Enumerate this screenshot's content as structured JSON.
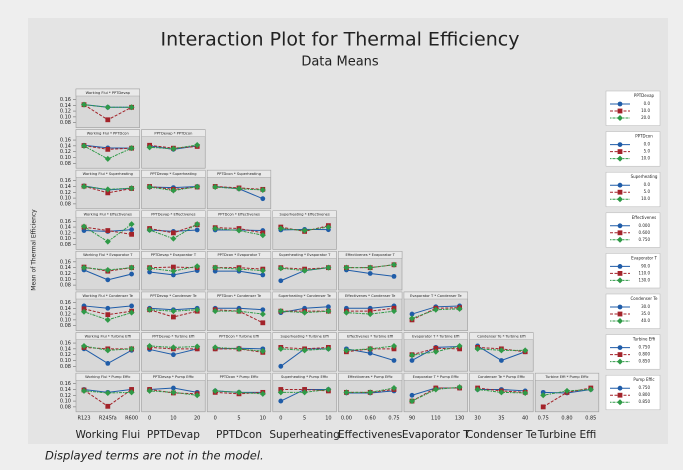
{
  "chart_data": {
    "type": "interaction",
    "title": "Interaction Plot for Thermal Efficiency",
    "subtitle": "Data Means",
    "ylabel": "Mean of Thermal Efficiency",
    "footnote": "Displayed terms are not in the model.",
    "ylim": [
      0.07,
      0.165
    ],
    "yticks": [
      0.08,
      {
        "value": 0.1,
        "label": "0.10"
      },
      0.12,
      0.14,
      0.16
    ],
    "colors": [
      "#1f5ca8",
      "#a3232a",
      "#2f9a47"
    ],
    "markers": [
      "circle",
      "square",
      "diamond"
    ],
    "x_factors": [
      {
        "label": "Working Flui",
        "levels": [
          "R123",
          "R245fa",
          "R600"
        ]
      },
      {
        "label": "PPTDevap",
        "levels": [
          "0",
          "10",
          "20"
        ]
      },
      {
        "label": "PPTDcon",
        "levels": [
          "0",
          "5",
          "10"
        ]
      },
      {
        "label": "Superheating",
        "levels": [
          "0",
          "5",
          "10"
        ]
      },
      {
        "label": "Effectivenes",
        "levels": [
          "0.00",
          "0.60",
          "0.75"
        ]
      },
      {
        "label": "Evaporator T",
        "levels": [
          "90",
          "110",
          "130"
        ]
      },
      {
        "label": "Condenser Te",
        "levels": [
          "30",
          "35",
          "40"
        ]
      },
      {
        "label": "Turbine Effi",
        "levels": [
          "0.75",
          "0.80",
          "0.85"
        ]
      }
    ],
    "rows": [
      {
        "legend": {
          "title": "PPTDevap",
          "levels": [
            "0.0",
            "10.0",
            "20.0"
          ]
        },
        "panels": [
          {
            "title": "Working Flui * PPTDevap",
            "series": [
              [
                0.142,
                0.133,
                0.133
              ],
              [
                0.142,
                0.09,
                0.133
              ],
              [
                0.142,
                0.133,
                0.133
              ]
            ]
          }
        ]
      },
      {
        "legend": {
          "title": "PPTDcon",
          "levels": [
            "0.0",
            "5.0",
            "10.0"
          ]
        },
        "panels": [
          {
            "title": "Working Flui * PPTDcon",
            "series": [
              [
                0.142,
                0.133,
                0.132
              ],
              [
                0.141,
                0.128,
                0.132
              ],
              [
                0.14,
                0.095,
                0.132
              ]
            ]
          },
          {
            "title": "PPTDevap * PPTDcon",
            "series": [
              [
                0.14,
                0.128,
                0.14
              ],
              [
                0.142,
                0.132,
                0.138
              ],
              [
                0.135,
                0.13,
                0.143
              ]
            ]
          }
        ]
      },
      {
        "legend": {
          "title": "Superheating",
          "levels": [
            "0.0",
            "5.0",
            "10.0"
          ]
        },
        "panels": [
          {
            "title": "Working Flui * Superheating",
            "series": [
              [
                0.142,
                0.128,
                0.134
              ],
              [
                0.141,
                0.118,
                0.133
              ],
              [
                0.14,
                0.13,
                0.134
              ]
            ]
          },
          {
            "title": "PPTDevap * Superheating",
            "series": [
              [
                0.138,
                0.136,
                0.14
              ],
              [
                0.14,
                0.13,
                0.138
              ],
              [
                0.138,
                0.126,
                0.139
              ]
            ]
          },
          {
            "title": "PPTDcon * Superheating",
            "series": [
              [
                0.14,
                0.132,
                0.098
              ],
              [
                0.14,
                0.135,
                0.13
              ],
              [
                0.138,
                0.132,
                0.128
              ]
            ]
          }
        ]
      },
      {
        "legend": {
          "title": "Effectivenes",
          "levels": [
            "0.000",
            "0.600",
            "0.750"
          ]
        },
        "panels": [
          {
            "title": "Working Flui * Effectivenes",
            "series": [
              [
                0.128,
                0.125,
                0.131
              ],
              [
                0.14,
                0.128,
                0.115
              ],
              [
                0.142,
                0.09,
                0.15
              ]
            ]
          },
          {
            "title": "PPTDevap * Effectivenes",
            "series": [
              [
                0.13,
                0.125,
                0.13
              ],
              [
                0.135,
                0.12,
                0.148
              ],
              [
                0.13,
                0.1,
                0.15
              ]
            ]
          },
          {
            "title": "PPTDcon * Effectivenes",
            "series": [
              [
                0.13,
                0.13,
                0.128
              ],
              [
                0.138,
                0.135,
                0.12
              ],
              [
                0.135,
                0.128,
                0.112
              ]
            ]
          },
          {
            "title": "Superheating * Effectivenes",
            "series": [
              [
                0.13,
                0.132,
                0.131
              ],
              [
                0.14,
                0.125,
                0.145
              ],
              [
                0.135,
                0.128,
                0.14
              ]
            ]
          }
        ]
      },
      {
        "legend": {
          "title": "Evaporator T",
          "levels": [
            "90.0",
            "110.0",
            "130.0"
          ]
        },
        "panels": [
          {
            "title": "Working Flui * Evaporator T",
            "series": [
              [
                0.132,
                0.098,
                0.118
              ],
              [
                0.142,
                0.128,
                0.14
              ],
              [
                0.14,
                0.132,
                0.14
              ]
            ]
          },
          {
            "title": "PPTDevap * Evaporator T",
            "series": [
              [
                0.125,
                0.115,
                0.13
              ],
              [
                0.14,
                0.142,
                0.14
              ],
              [
                0.138,
                0.128,
                0.145
              ]
            ]
          },
          {
            "title": "PPTDcon * Evaporator T",
            "series": [
              [
                0.128,
                0.128,
                0.115
              ],
              [
                0.14,
                0.14,
                0.135
              ],
              [
                0.14,
                0.135,
                0.13
              ]
            ]
          },
          {
            "title": "Superheating * Evaporator T",
            "series": [
              [
                0.095,
                0.13,
                0.14
              ],
              [
                0.14,
                0.135,
                0.14
              ],
              [
                0.138,
                0.13,
                0.14
              ]
            ]
          },
          {
            "title": "Effectivenes * Evaporator T",
            "series": [
              [
                0.132,
                0.12,
                0.11
              ],
              [
                0.14,
                0.14,
                0.15
              ],
              [
                0.14,
                0.14,
                0.15
              ]
            ]
          }
        ]
      },
      {
        "legend": {
          "title": "Condenser Te",
          "levels": [
            "30.0",
            "35.0",
            "40.0"
          ]
        },
        "panels": [
          {
            "title": "Working Flui * Condenser Te",
            "series": [
              [
                0.148,
                0.14,
                0.148
              ],
              [
                0.138,
                0.118,
                0.13
              ],
              [
                0.128,
                0.1,
                0.125
              ]
            ]
          },
          {
            "title": "PPTDevap * Condenser Te",
            "series": [
              [
                0.14,
                0.135,
                0.14
              ],
              [
                0.135,
                0.11,
                0.13
              ],
              [
                0.135,
                0.13,
                0.135
              ]
            ]
          },
          {
            "title": "PPTDcon * Condenser Te",
            "series": [
              [
                0.14,
                0.14,
                0.135
              ],
              [
                0.135,
                0.13,
                0.09
              ],
              [
                0.13,
                0.13,
                0.12
              ]
            ]
          },
          {
            "title": "Superheating * Condenser Te",
            "series": [
              [
                0.125,
                0.14,
                0.145
              ],
              [
                0.13,
                0.13,
                0.13
              ],
              [
                0.13,
                0.125,
                0.13
              ]
            ]
          },
          {
            "title": "Effectivenes * Condenser Te",
            "series": [
              [
                0.14,
                0.14,
                0.148
              ],
              [
                0.13,
                0.13,
                0.14
              ],
              [
                0.125,
                0.12,
                0.13
              ]
            ]
          },
          {
            "title": "Evaporator T * Condenser Te",
            "series": [
              [
                0.12,
                0.145,
                0.148
              ],
              [
                0.1,
                0.14,
                0.142
              ],
              [
                0.105,
                0.135,
                0.138
              ]
            ]
          }
        ]
      },
      {
        "legend": {
          "title": "Turbine Effi",
          "levels": [
            "0.750",
            "0.800",
            "0.850"
          ]
        },
        "panels": [
          {
            "title": "Working Flui * Turbine Effi",
            "series": [
              [
                0.14,
                0.09,
                0.135
              ],
              [
                0.145,
                0.14,
                0.14
              ],
              [
                0.15,
                0.135,
                0.14
              ]
            ]
          },
          {
            "title": "PPTDevap * Turbine Effi",
            "series": [
              [
                0.138,
                0.12,
                0.14
              ],
              [
                0.145,
                0.14,
                0.14
              ],
              [
                0.15,
                0.145,
                0.148
              ]
            ]
          },
          {
            "title": "PPTDcon * Turbine Effi",
            "series": [
              [
                0.14,
                0.142,
                0.14
              ],
              [
                0.14,
                0.14,
                0.128
              ],
              [
                0.145,
                0.14,
                0.132
              ]
            ]
          },
          {
            "title": "Superheating * Turbine Effi",
            "series": [
              [
                0.08,
                0.14,
                0.14
              ],
              [
                0.145,
                0.14,
                0.145
              ],
              [
                0.14,
                0.135,
                0.14
              ]
            ]
          },
          {
            "title": "Effectivenes * Turbine Effi",
            "series": [
              [
                0.14,
                0.125,
                0.1
              ],
              [
                0.13,
                0.14,
                0.14
              ],
              [
                0.135,
                0.14,
                0.15
              ]
            ]
          },
          {
            "title": "Evaporator T * Turbine Effi",
            "series": [
              [
                0.1,
                0.145,
                0.148
              ],
              [
                0.12,
                0.142,
                0.14
              ],
              [
                0.118,
                0.13,
                0.15
              ]
            ]
          },
          {
            "title": "Condenser Te * Turbine Effi",
            "series": [
              [
                0.15,
                0.1,
                0.13
              ],
              [
                0.145,
                0.14,
                0.13
              ],
              [
                0.14,
                0.135,
                0.135
              ]
            ]
          }
        ]
      },
      {
        "legend": {
          "title": "Pump Effic",
          "levels": [
            "0.750",
            "0.800",
            "0.850"
          ]
        },
        "panels": [
          {
            "title": "Working Flui * Pump Effic",
            "series": [
              [
                0.14,
                0.13,
                0.14
              ],
              [
                0.138,
                0.082,
                0.14
              ],
              [
                0.135,
                0.128,
                0.13
              ]
            ]
          },
          {
            "title": "PPTDevap * Pump Effic",
            "series": [
              [
                0.14,
                0.145,
                0.13
              ],
              [
                0.14,
                0.128,
                0.125
              ],
              [
                0.135,
                0.13,
                0.12
              ]
            ]
          },
          {
            "title": "PPTDcon * Pump Effic",
            "series": [
              [
                0.135,
                0.13,
                0.13
              ],
              [
                0.13,
                0.125,
                0.13
              ],
              [
                0.135,
                0.13,
                0.125
              ]
            ]
          },
          {
            "title": "Superheating * Pump Effic",
            "series": [
              [
                0.1,
                0.14,
                0.14
              ],
              [
                0.14,
                0.14,
                0.135
              ],
              [
                0.13,
                0.13,
                0.14
              ]
            ]
          },
          {
            "title": "Effectivenes * Pump Effic",
            "series": [
              [
                0.128,
                0.128,
                0.135
              ],
              [
                0.13,
                0.13,
                0.14
              ],
              [
                0.13,
                0.13,
                0.145
              ]
            ]
          },
          {
            "title": "Evaporator T * Pump Effic",
            "series": [
              [
                0.12,
                0.145,
                0.145
              ],
              [
                0.1,
                0.145,
                0.145
              ],
              [
                0.1,
                0.14,
                0.148
              ]
            ]
          },
          {
            "title": "Condenser Te * Pump Effic",
            "series": [
              [
                0.14,
                0.14,
                0.135
              ],
              [
                0.145,
                0.135,
                0.13
              ],
              [
                0.14,
                0.13,
                0.128
              ]
            ]
          },
          {
            "title": "Turbine Effi * Pump Effic",
            "series": [
              [
                0.13,
                0.128,
                0.14
              ],
              [
                0.08,
                0.13,
                0.145
              ],
              [
                0.12,
                0.135,
                0.14
              ]
            ]
          }
        ]
      }
    ]
  }
}
